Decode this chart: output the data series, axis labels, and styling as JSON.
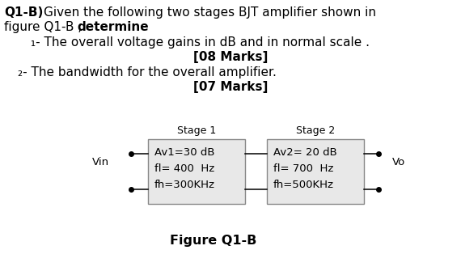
{
  "background_color": "#ffffff",
  "stage1_label": "Stage 1",
  "stage2_label": "Stage 2",
  "stage1_line1": "Av1=30 dB",
  "stage1_line2": "fl= 400  Hz",
  "stage1_line3": "fh=300KHz",
  "stage2_line1": "Av2= 20 dB",
  "stage2_line2": "fl= 700  Hz",
  "stage2_line3": "fh=500KHz",
  "vin_label": "Vin",
  "vo_label": "Vo",
  "figure_label": "Figure Q1-B",
  "box_facecolor": "#e8e8e8",
  "box_edgecolor": "#888888",
  "text_color": "#000000",
  "fig_width": 5.7,
  "fig_height": 3.3,
  "dpi": 100
}
